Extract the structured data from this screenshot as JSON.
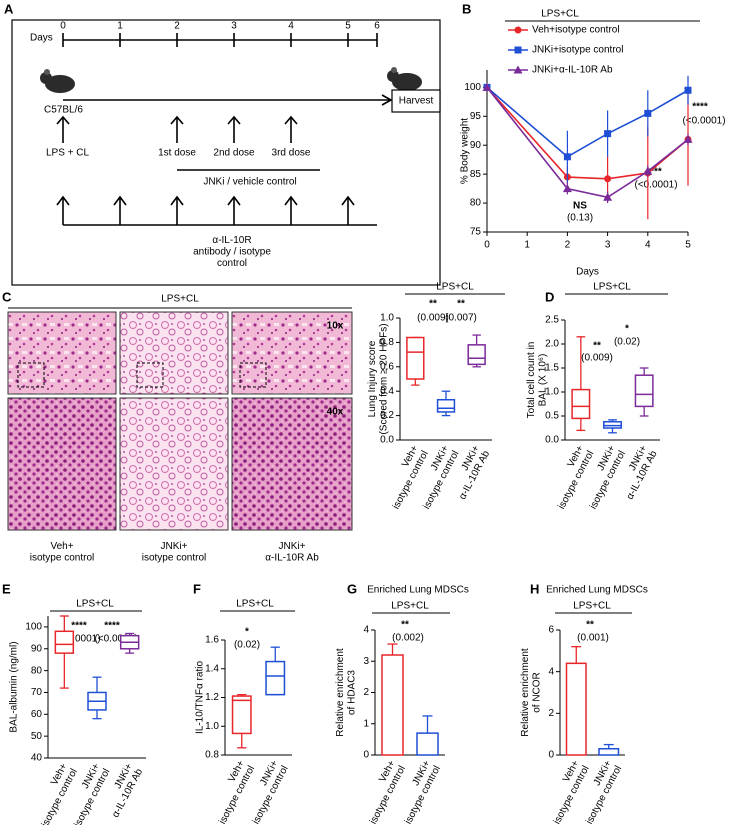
{
  "diagram": {
    "panel": "A",
    "days_label": "Days",
    "days": [
      "0",
      "1",
      "2",
      "3",
      "4",
      "5",
      "6"
    ],
    "strain": "C57BL/6",
    "harvest": "Harvest",
    "challenge": "LPS + CL",
    "doses": [
      "1st dose",
      "2nd dose",
      "3rd dose"
    ],
    "treatment": "JNKi / vehicle control",
    "antibody": "α-IL-10R\nantibody / isotype\ncontrol"
  },
  "micrographs": {
    "panel": "C",
    "header": "LPS+CL",
    "magnifications": [
      "10x",
      "40x"
    ],
    "captions": [
      "Veh+\nisotype control",
      "JNKi+\nisotype control",
      "JNKi+\nα-IL-10R Ab"
    ]
  },
  "chart_data": [
    {
      "type": "line",
      "panel": "B",
      "header": "LPS+CL",
      "ylabel": "% Body weight",
      "xlabel": "Days",
      "x": [
        0,
        1,
        2,
        3,
        4,
        5
      ],
      "xlim": [
        0,
        5
      ],
      "xticks": [
        0,
        1,
        2,
        3,
        4,
        5
      ],
      "ylim": [
        75,
        103
      ],
      "yticks": [
        75,
        80,
        85,
        90,
        95,
        100
      ],
      "series": [
        {
          "name": "Veh+isotype control",
          "color": "#e8262a",
          "marker": "circle",
          "values": [
            100,
            null,
            84.5,
            84.2,
            85.2,
            91
          ],
          "errors": [
            0,
            null,
            2,
            4,
            8,
            8
          ]
        },
        {
          "name": "JNKi+isotype control",
          "color": "#1f4fd6",
          "marker": "square",
          "values": [
            100,
            null,
            88,
            92,
            95.5,
            99.5
          ],
          "errors": [
            0,
            null,
            4.5,
            4,
            4,
            2.5
          ]
        },
        {
          "name": "JNKi+α-IL-10R Ab",
          "color": "#7b2a9a",
          "marker": "triangle",
          "values": [
            100,
            null,
            82.5,
            81,
            85.5,
            91
          ],
          "errors": [
            0,
            null,
            1,
            1,
            1,
            1
          ]
        }
      ],
      "annotations": [
        "NS",
        "(0.13)",
        "****",
        "(<0.0001)",
        "****",
        "(<0.0001)"
      ]
    },
    {
      "type": "box",
      "header": "LPS+CL",
      "ylabel": "Lung Injury score\n(Scored from ≥ 20 HPFs)",
      "categories": [
        "Veh+\nisotype control",
        "JNKi+\nisotype control",
        "JNKi+\nα-IL-10R Ab"
      ],
      "colors": [
        "#e8262a",
        "#1f4fd6",
        "#7b2a9a"
      ],
      "ylim": [
        0,
        1
      ],
      "yticks": [
        {
          "value": 0,
          "label": "0.0"
        },
        0.2,
        0.4,
        0.6,
        0.8,
        {
          "value": 1,
          "label": "1.0"
        }
      ],
      "boxes": [
        {
          "min": 0.45,
          "q1": 0.5,
          "median": 0.72,
          "q3": 0.84,
          "max": 0.84
        },
        {
          "min": 0.2,
          "q1": 0.23,
          "median": 0.26,
          "q3": 0.33,
          "max": 0.4
        },
        {
          "min": 0.6,
          "q1": 0.62,
          "median": 0.67,
          "q3": 0.78,
          "max": 0.86
        }
      ],
      "annotations": [
        "**",
        "(0.009)",
        "**",
        "(0.007)"
      ]
    },
    {
      "type": "box",
      "panel": "D",
      "header": "LPS+CL",
      "ylabel": "Total cell count in\nBAL (X 10⁶)",
      "categories": [
        "Veh+\nisotype control",
        "JNKi+\nisotype control",
        "JNKi+\nα-IL-10R Ab"
      ],
      "colors": [
        "#e8262a",
        "#1f4fd6",
        "#7b2a9a"
      ],
      "ylim": [
        0,
        2.5
      ],
      "yticks": [
        {
          "value": 0,
          "label": "0.0"
        },
        0.5,
        {
          "value": 1,
          "label": "1.0"
        },
        1.5,
        {
          "value": 2,
          "label": "2.0"
        },
        2.5
      ],
      "boxes": [
        {
          "min": 0.2,
          "q1": 0.45,
          "median": 0.7,
          "q3": 1.05,
          "max": 2.15
        },
        {
          "min": 0.15,
          "q1": 0.25,
          "median": 0.3,
          "q3": 0.38,
          "max": 0.42
        },
        {
          "min": 0.5,
          "q1": 0.7,
          "median": 0.95,
          "q3": 1.35,
          "max": 1.5
        }
      ],
      "annotations": [
        "**",
        "(0.009)",
        "*",
        "(0.02)"
      ]
    },
    {
      "type": "box",
      "panel": "E",
      "header": "LPS+CL",
      "ylabel": "BAL-albumin (ng/ml)",
      "categories": [
        "Veh+\nisotype control",
        "JNKi+\nisotype control",
        "JNKi+\nα-IL-10R Ab"
      ],
      "colors": [
        "#e8262a",
        "#1f4fd6",
        "#7b2a9a"
      ],
      "ylim": [
        40,
        105
      ],
      "yticks": [
        40,
        50,
        60,
        70,
        80,
        90,
        100
      ],
      "boxes": [
        {
          "min": 72,
          "q1": 88,
          "median": 92,
          "q3": 98,
          "max": 105
        },
        {
          "min": 58,
          "q1": 62,
          "median": 66,
          "q3": 70,
          "max": 77
        },
        {
          "min": 88,
          "q1": 90,
          "median": 93,
          "q3": 96,
          "max": 97
        }
      ],
      "annotations": [
        "****",
        "(<0.0001)",
        "****",
        "(<0.0001)"
      ]
    },
    {
      "type": "box",
      "panel": "F",
      "header": "LPS+CL",
      "ylabel": "IL-10/TNFα ratio",
      "categories": [
        "Veh+\nisotype control",
        "JNKi+\nisotype control"
      ],
      "colors": [
        "#e8262a",
        "#1f4fd6"
      ],
      "ylim": [
        0.8,
        1.6
      ],
      "yticks": [
        0.8,
        {
          "value": 1,
          "label": "1.0"
        },
        1.2,
        1.4,
        1.6
      ],
      "boxes": [
        {
          "min": 0.85,
          "q1": 0.95,
          "median": 1.18,
          "q3": 1.21,
          "max": 1.22
        },
        {
          "min": 1.22,
          "q1": 1.22,
          "median": 1.35,
          "q3": 1.45,
          "max": 1.55
        }
      ],
      "annotations": [
        "*",
        "(0.02)"
      ]
    },
    {
      "type": "bar",
      "panel": "G",
      "title": "Enriched Lung MDSCs",
      "header": "LPS+CL",
      "ylabel": "Relative enrichment\nof HDAC3",
      "categories": [
        "Veh+\nisotype control",
        "JNKi+\nisotype control"
      ],
      "colors": [
        "#e8262a",
        "#1f4fd6"
      ],
      "ylim": [
        0,
        4
      ],
      "yticks": [
        0,
        1,
        2,
        3,
        4
      ],
      "values": [
        3.2,
        0.7
      ],
      "errors": [
        0.35,
        0.55
      ],
      "annotations": [
        "**",
        "(0.002)"
      ]
    },
    {
      "type": "bar",
      "panel": "H",
      "title": "Enriched Lung MDSCs",
      "header": "LPS+CL",
      "ylabel": "Relative enrichment\nof NCOR",
      "categories": [
        "Veh+\nisotype control",
        "JNKi+\nisotype control"
      ],
      "colors": [
        "#e8262a",
        "#1f4fd6"
      ],
      "ylim": [
        0,
        6
      ],
      "yticks": [
        0,
        2,
        4,
        6
      ],
      "values": [
        4.4,
        0.3
      ],
      "errors": [
        0.8,
        0.2
      ],
      "annotations": [
        "**",
        "(0.001)"
      ]
    }
  ]
}
